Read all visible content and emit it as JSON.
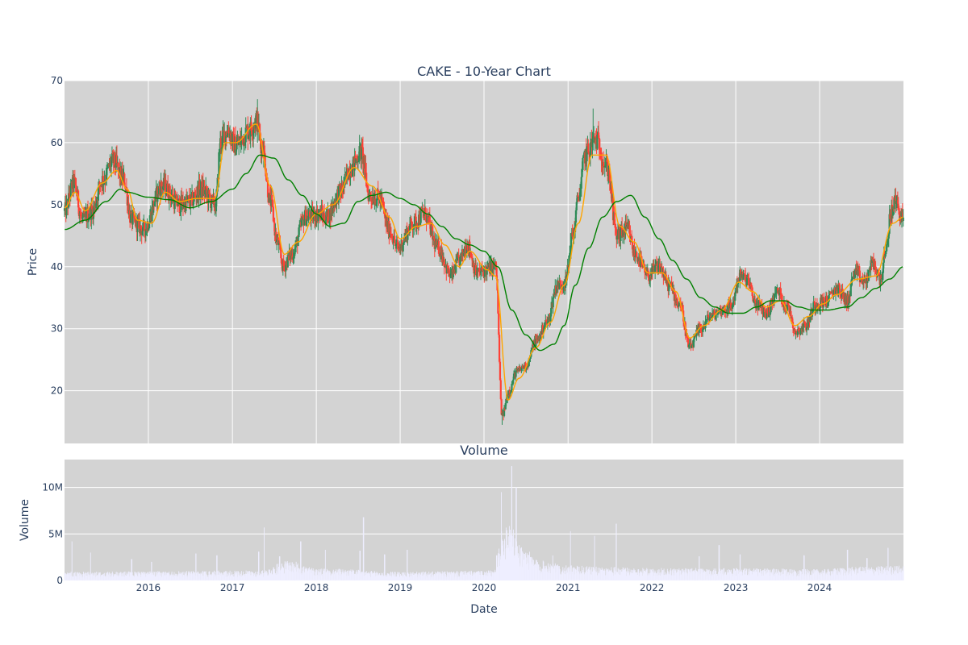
{
  "chart_data": [
    {
      "type": "candlestick",
      "title": "CAKE - 10-Year Chart",
      "xlabel": "",
      "ylabel": "Price",
      "xlim": [
        "2015-01-01",
        "2024-12-31"
      ],
      "ylim": [
        11.5,
        70
      ],
      "yticks": [
        20,
        30,
        40,
        50,
        60,
        70
      ],
      "ytick_labels": [
        "20",
        "30",
        "40",
        "50",
        "60",
        "70"
      ],
      "grid": true,
      "colors": {
        "up": "#2e8b57",
        "down": "#ff4136",
        "ma_short": "#ffa500",
        "ma_long": "#008000",
        "plot_bg": "#d3d3d3"
      },
      "price_anchors": [
        [
          "2015-01-02",
          49.0
        ],
        [
          "2015-02-10",
          53.5
        ],
        [
          "2015-03-20",
          47.5
        ],
        [
          "2015-05-01",
          49.0
        ],
        [
          "2015-06-15",
          54.0
        ],
        [
          "2015-08-01",
          57.0
        ],
        [
          "2015-09-15",
          54.0
        ],
        [
          "2015-10-20",
          47.5
        ],
        [
          "2015-12-10",
          46.0
        ],
        [
          "2016-03-01",
          53.0
        ],
        [
          "2016-05-15",
          50.0
        ],
        [
          "2016-07-01",
          50.5
        ],
        [
          "2016-08-15",
          52.5
        ],
        [
          "2016-10-20",
          50.0
        ],
        [
          "2016-11-10",
          60.0
        ],
        [
          "2016-12-10",
          62.0
        ],
        [
          "2017-01-15",
          59.5
        ],
        [
          "2017-03-15",
          62.0
        ],
        [
          "2017-04-15",
          63.5
        ],
        [
          "2017-05-10",
          59.5
        ],
        [
          "2017-06-15",
          50.5
        ],
        [
          "2017-07-15",
          44.0
        ],
        [
          "2017-08-10",
          40.0
        ],
        [
          "2017-09-15",
          42.0
        ],
        [
          "2017-11-15",
          48.0
        ],
        [
          "2018-01-15",
          48.5
        ],
        [
          "2018-02-15",
          48.0
        ],
        [
          "2018-04-15",
          52.0
        ],
        [
          "2018-06-01",
          56.0
        ],
        [
          "2018-07-15",
          58.5
        ],
        [
          "2018-08-20",
          51.5
        ],
        [
          "2018-10-01",
          51.0
        ],
        [
          "2018-11-15",
          46.0
        ],
        [
          "2018-12-20",
          43.0
        ],
        [
          "2019-03-01",
          47.0
        ],
        [
          "2019-04-15",
          48.5
        ],
        [
          "2019-06-15",
          43.0
        ],
        [
          "2019-08-10",
          38.5
        ],
        [
          "2019-09-15",
          41.0
        ],
        [
          "2019-10-20",
          43.5
        ],
        [
          "2019-12-01",
          39.0
        ],
        [
          "2020-02-20",
          40.0
        ],
        [
          "2020-03-20",
          16.0
        ],
        [
          "2020-04-20",
          20.0
        ],
        [
          "2020-05-20",
          23.0
        ],
        [
          "2020-07-01",
          24.0
        ],
        [
          "2020-08-15",
          28.0
        ],
        [
          "2020-10-01",
          31.0
        ],
        [
          "2020-11-15",
          37.0
        ],
        [
          "2020-12-20",
          37.5
        ],
        [
          "2021-01-20",
          45.0
        ],
        [
          "2021-02-20",
          52.0
        ],
        [
          "2021-03-15",
          58.0
        ],
        [
          "2021-05-01",
          60.5
        ],
        [
          "2021-06-20",
          56.0
        ],
        [
          "2021-08-01",
          45.0
        ],
        [
          "2021-09-15",
          46.0
        ],
        [
          "2021-10-20",
          42.0
        ],
        [
          "2021-12-15",
          38.5
        ],
        [
          "2022-02-01",
          40.0
        ],
        [
          "2022-03-15",
          37.0
        ],
        [
          "2022-05-01",
          34.0
        ],
        [
          "2022-06-15",
          27.0
        ],
        [
          "2022-08-01",
          30.0
        ],
        [
          "2022-09-15",
          32.0
        ],
        [
          "2022-11-01",
          33.0
        ],
        [
          "2022-12-10",
          33.5
        ],
        [
          "2023-01-20",
          38.5
        ],
        [
          "2023-02-15",
          38.0
        ],
        [
          "2023-04-01",
          34.0
        ],
        [
          "2023-05-15",
          32.5
        ],
        [
          "2023-07-01",
          36.0
        ],
        [
          "2023-08-15",
          33.5
        ],
        [
          "2023-09-20",
          29.5
        ],
        [
          "2023-11-01",
          30.5
        ],
        [
          "2023-12-15",
          34.0
        ],
        [
          "2024-02-01",
          34.5
        ],
        [
          "2024-03-15",
          36.5
        ],
        [
          "2024-05-01",
          34.5
        ],
        [
          "2024-06-01",
          39.0
        ],
        [
          "2024-07-15",
          37.5
        ],
        [
          "2024-08-20",
          40.5
        ],
        [
          "2024-09-20",
          38.0
        ],
        [
          "2024-10-15",
          42.0
        ],
        [
          "2024-11-05",
          48.5
        ],
        [
          "2024-11-25",
          50.5
        ],
        [
          "2024-12-31",
          47.5
        ]
      ],
      "extremes": [
        [
          "2017-04-20",
          67.0
        ],
        [
          "2020-03-20",
          14.5
        ],
        [
          "2021-04-20",
          65.5
        ]
      ],
      "moving_average_short": [
        [
          "2015-01-02",
          49.5
        ],
        [
          "2015-02-15",
          52.0
        ],
        [
          "2015-04-01",
          49.0
        ],
        [
          "2015-06-15",
          53.5
        ],
        [
          "2015-08-15",
          55.5
        ],
        [
          "2015-10-01",
          52.5
        ],
        [
          "2015-11-15",
          47.5
        ],
        [
          "2016-01-15",
          47.0
        ],
        [
          "2016-03-15",
          52.0
        ],
        [
          "2016-05-15",
          50.5
        ],
        [
          "2016-08-01",
          51.0
        ],
        [
          "2016-10-15",
          51.0
        ],
        [
          "2016-12-01",
          60.0
        ],
        [
          "2017-01-15",
          60.0
        ],
        [
          "2017-04-15",
          63.0
        ],
        [
          "2017-06-15",
          53.0
        ],
        [
          "2017-08-15",
          42.0
        ],
        [
          "2017-10-15",
          44.0
        ],
        [
          "2018-01-01",
          48.5
        ],
        [
          "2018-03-15",
          50.0
        ],
        [
          "2018-06-15",
          56.0
        ],
        [
          "2018-09-01",
          53.0
        ],
        [
          "2018-11-15",
          48.0
        ],
        [
          "2019-01-01",
          44.5
        ],
        [
          "2019-03-15",
          46.5
        ],
        [
          "2019-05-15",
          47.0
        ],
        [
          "2019-07-15",
          43.5
        ],
        [
          "2019-09-15",
          40.0
        ],
        [
          "2019-11-01",
          42.5
        ],
        [
          "2020-01-15",
          39.5
        ],
        [
          "2020-02-20",
          38.5
        ],
        [
          "2020-04-15",
          18.5
        ],
        [
          "2020-06-01",
          22.0
        ],
        [
          "2020-08-15",
          27.0
        ],
        [
          "2020-10-15",
          31.0
        ],
        [
          "2020-12-15",
          37.0
        ],
        [
          "2021-02-15",
          47.0
        ],
        [
          "2021-04-15",
          58.0
        ],
        [
          "2021-06-15",
          58.0
        ],
        [
          "2021-08-15",
          46.5
        ],
        [
          "2021-10-15",
          44.0
        ],
        [
          "2021-12-15",
          39.0
        ],
        [
          "2022-02-15",
          39.0
        ],
        [
          "2022-04-15",
          36.0
        ],
        [
          "2022-06-15",
          28.5
        ],
        [
          "2022-08-15",
          30.5
        ],
        [
          "2022-11-01",
          33.0
        ],
        [
          "2023-01-15",
          37.5
        ],
        [
          "2023-03-15",
          36.0
        ],
        [
          "2023-05-15",
          33.5
        ],
        [
          "2023-07-15",
          34.5
        ],
        [
          "2023-09-15",
          30.5
        ],
        [
          "2023-11-15",
          32.0
        ],
        [
          "2024-01-15",
          34.0
        ],
        [
          "2024-03-15",
          35.5
        ],
        [
          "2024-06-15",
          38.0
        ],
        [
          "2024-09-01",
          38.5
        ],
        [
          "2024-11-15",
          47.0
        ],
        [
          "2024-12-31",
          48.0
        ]
      ],
      "moving_average_long": [
        [
          "2015-01-02",
          46.0
        ],
        [
          "2015-04-01",
          47.5
        ],
        [
          "2015-07-01",
          50.5
        ],
        [
          "2015-09-01",
          52.5
        ],
        [
          "2015-10-01",
          52.0
        ],
        [
          "2016-01-01",
          51.2
        ],
        [
          "2016-04-01",
          50.8
        ],
        [
          "2016-07-01",
          49.5
        ],
        [
          "2016-10-01",
          50.5
        ],
        [
          "2017-01-01",
          52.5
        ],
        [
          "2017-03-01",
          55.0
        ],
        [
          "2017-05-01",
          58.0
        ],
        [
          "2017-07-01",
          57.5
        ],
        [
          "2017-09-01",
          54.0
        ],
        [
          "2017-11-01",
          51.5
        ],
        [
          "2018-01-01",
          48.5
        ],
        [
          "2018-03-01",
          46.5
        ],
        [
          "2018-05-01",
          47.0
        ],
        [
          "2018-07-01",
          50.5
        ],
        [
          "2018-09-01",
          51.5
        ],
        [
          "2018-11-01",
          52.0
        ],
        [
          "2019-01-01",
          51.0
        ],
        [
          "2019-03-01",
          50.0
        ],
        [
          "2019-05-01",
          48.5
        ],
        [
          "2019-07-01",
          46.5
        ],
        [
          "2019-09-01",
          44.5
        ],
        [
          "2019-11-01",
          43.5
        ],
        [
          "2020-01-01",
          42.5
        ],
        [
          "2020-03-01",
          40.0
        ],
        [
          "2020-05-01",
          33.0
        ],
        [
          "2020-07-01",
          29.0
        ],
        [
          "2020-09-01",
          26.5
        ],
        [
          "2020-11-01",
          27.5
        ],
        [
          "2020-12-15",
          30.5
        ],
        [
          "2021-02-01",
          37.0
        ],
        [
          "2021-04-01",
          43.0
        ],
        [
          "2021-06-01",
          48.0
        ],
        [
          "2021-08-01",
          50.5
        ],
        [
          "2021-10-01",
          51.5
        ],
        [
          "2021-12-01",
          48.0
        ],
        [
          "2022-02-01",
          44.5
        ],
        [
          "2022-04-01",
          41.0
        ],
        [
          "2022-06-01",
          38.0
        ],
        [
          "2022-08-01",
          35.0
        ],
        [
          "2022-10-01",
          33.5
        ],
        [
          "2022-12-01",
          32.5
        ],
        [
          "2023-02-01",
          32.5
        ],
        [
          "2023-04-01",
          33.5
        ],
        [
          "2023-06-01",
          34.5
        ],
        [
          "2023-08-01",
          34.5
        ],
        [
          "2023-10-01",
          33.5
        ],
        [
          "2023-12-01",
          33.0
        ],
        [
          "2024-02-01",
          33.0
        ],
        [
          "2024-05-01",
          33.5
        ],
        [
          "2024-07-01",
          35.0
        ],
        [
          "2024-09-01",
          36.5
        ],
        [
          "2024-11-01",
          38.0
        ],
        [
          "2024-12-31",
          40.0
        ]
      ]
    },
    {
      "type": "bar",
      "title": "Volume",
      "xlabel": "Date",
      "ylabel": "Volume",
      "xlim": [
        "2015-01-01",
        "2024-12-31"
      ],
      "ylim": [
        0,
        13000000
      ],
      "yticks": [
        0,
        5000000,
        10000000
      ],
      "ytick_labels": [
        "0",
        "5M",
        "10M"
      ],
      "xticks": [
        "2016-01-01",
        "2017-01-01",
        "2018-01-01",
        "2019-01-01",
        "2020-01-01",
        "2021-01-01",
        "2022-01-01",
        "2023-01-01",
        "2024-01-01"
      ],
      "xtick_labels": [
        "2016",
        "2017",
        "2018",
        "2019",
        "2020",
        "2021",
        "2022",
        "2023",
        "2024"
      ],
      "grid": true,
      "colors": {
        "bar": "#eeeeff",
        "plot_bg": "#d3d3d3"
      },
      "volume_baseline": [
        [
          "2015-01-02",
          700000
        ],
        [
          "2017-05-01",
          800000
        ],
        [
          "2017-09-01",
          1600000
        ],
        [
          "2018-01-01",
          1000000
        ],
        [
          "2019-01-01",
          700000
        ],
        [
          "2020-02-15",
          800000
        ],
        [
          "2020-03-20",
          4000000
        ],
        [
          "2020-04-15",
          5200000
        ],
        [
          "2020-06-01",
          3000000
        ],
        [
          "2020-09-01",
          1600000
        ],
        [
          "2021-01-01",
          1200000
        ],
        [
          "2021-06-01",
          1100000
        ],
        [
          "2022-01-01",
          1000000
        ],
        [
          "2023-01-01",
          1000000
        ],
        [
          "2024-01-01",
          900000
        ],
        [
          "2024-06-01",
          1100000
        ],
        [
          "2024-12-31",
          1200000
        ]
      ],
      "volume_spikes": [
        [
          "2015-02-01",
          4200000
        ],
        [
          "2015-04-25",
          3000000
        ],
        [
          "2015-10-20",
          2300000
        ],
        [
          "2016-01-15",
          2000000
        ],
        [
          "2016-07-25",
          2900000
        ],
        [
          "2016-10-25",
          2700000
        ],
        [
          "2017-04-25",
          3100000
        ],
        [
          "2017-05-20",
          5700000
        ],
        [
          "2017-07-25",
          2600000
        ],
        [
          "2017-10-25",
          4200000
        ],
        [
          "2018-02-10",
          3300000
        ],
        [
          "2018-07-10",
          3200000
        ],
        [
          "2018-07-25",
          6800000
        ],
        [
          "2018-10-25",
          2800000
        ],
        [
          "2019-02-01",
          3300000
        ],
        [
          "2020-02-25",
          2700000
        ],
        [
          "2020-03-15",
          9500000
        ],
        [
          "2020-05-01",
          12300000
        ],
        [
          "2020-05-20",
          10000000
        ],
        [
          "2020-10-25",
          2700000
        ],
        [
          "2021-01-10",
          5300000
        ],
        [
          "2021-04-25",
          4800000
        ],
        [
          "2021-07-30",
          6100000
        ],
        [
          "2022-07-25",
          2600000
        ],
        [
          "2022-10-20",
          3800000
        ],
        [
          "2023-01-20",
          2800000
        ],
        [
          "2023-10-25",
          2700000
        ],
        [
          "2024-05-01",
          3300000
        ],
        [
          "2024-07-25",
          2400000
        ],
        [
          "2024-10-25",
          3500000
        ]
      ]
    }
  ]
}
